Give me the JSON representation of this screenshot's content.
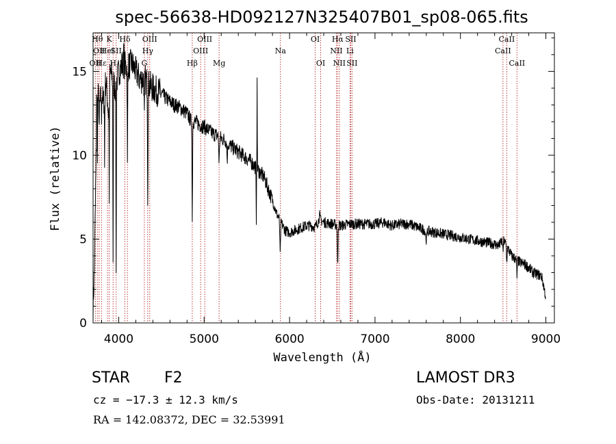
{
  "chart_data": {
    "type": "line",
    "title": "spec-56638-HD092127N325407B01_sp08-065.fits",
    "xlabel": "Wavelength (Å)",
    "ylabel": "Flux (relative)",
    "xlim": [
      3700,
      9100
    ],
    "ylim": [
      0,
      17.3
    ],
    "x_ticks": [
      4000,
      5000,
      6000,
      7000,
      8000,
      9000
    ],
    "y_ticks": [
      0,
      5,
      10,
      15
    ],
    "line_color": "#000000",
    "marker_color": "#b22222",
    "anchors": [
      [
        3700,
        1.0
      ],
      [
        3715,
        3.0
      ],
      [
        3730,
        8.0
      ],
      [
        3745,
        12.5
      ],
      [
        3760,
        13.5
      ],
      [
        3780,
        13.0
      ],
      [
        3800,
        14.0
      ],
      [
        3820,
        13.0
      ],
      [
        3850,
        14.5
      ],
      [
        3880,
        12.5
      ],
      [
        3900,
        15.0
      ],
      [
        3930,
        14.5
      ],
      [
        3960,
        14.0
      ],
      [
        4000,
        15.0
      ],
      [
        4050,
        15.5
      ],
      [
        4100,
        15.2
      ],
      [
        4150,
        15.5
      ],
      [
        4200,
        15.0
      ],
      [
        4250,
        14.5
      ],
      [
        4300,
        14.6
      ],
      [
        4350,
        14.2
      ],
      [
        4400,
        14.0
      ],
      [
        4450,
        13.8
      ],
      [
        4500,
        13.7
      ],
      [
        4550,
        13.4
      ],
      [
        4600,
        13.2
      ],
      [
        4650,
        13.0
      ],
      [
        4700,
        12.9
      ],
      [
        4750,
        12.7
      ],
      [
        4800,
        12.5
      ],
      [
        4850,
        12.0
      ],
      [
        4900,
        12.0
      ],
      [
        4950,
        11.8
      ],
      [
        5000,
        11.7
      ],
      [
        5050,
        11.5
      ],
      [
        5100,
        11.3
      ],
      [
        5150,
        11.2
      ],
      [
        5200,
        11.0
      ],
      [
        5250,
        10.9
      ],
      [
        5300,
        10.6
      ],
      [
        5350,
        10.4
      ],
      [
        5400,
        10.2
      ],
      [
        5450,
        10.0
      ],
      [
        5500,
        9.8
      ],
      [
        5550,
        9.6
      ],
      [
        5600,
        9.3
      ],
      [
        5650,
        9.0
      ],
      [
        5700,
        8.7
      ],
      [
        5750,
        8.0
      ],
      [
        5800,
        7.3
      ],
      [
        5850,
        6.5
      ],
      [
        5900,
        6.0
      ],
      [
        5950,
        5.5
      ],
      [
        6000,
        5.4
      ],
      [
        6050,
        5.5
      ],
      [
        6100,
        5.6
      ],
      [
        6150,
        5.7
      ],
      [
        6200,
        5.8
      ],
      [
        6250,
        5.8
      ],
      [
        6300,
        5.7
      ],
      [
        6350,
        6.2
      ],
      [
        6400,
        6.0
      ],
      [
        6500,
        5.9
      ],
      [
        6600,
        5.8
      ],
      [
        6700,
        5.9
      ],
      [
        6800,
        5.9
      ],
      [
        6900,
        5.9
      ],
      [
        7000,
        5.9
      ],
      [
        7100,
        6.0
      ],
      [
        7200,
        5.8
      ],
      [
        7300,
        5.9
      ],
      [
        7400,
        5.9
      ],
      [
        7500,
        5.7
      ],
      [
        7600,
        5.5
      ],
      [
        7700,
        5.4
      ],
      [
        7800,
        5.3
      ],
      [
        7900,
        5.2
      ],
      [
        8000,
        5.1
      ],
      [
        8100,
        5.0
      ],
      [
        8200,
        4.9
      ],
      [
        8300,
        4.8
      ],
      [
        8400,
        4.7
      ],
      [
        8450,
        4.6
      ],
      [
        8500,
        5.0
      ],
      [
        8550,
        4.5
      ],
      [
        8600,
        4.0
      ],
      [
        8650,
        3.8
      ],
      [
        8700,
        3.6
      ],
      [
        8750,
        3.5
      ],
      [
        8800,
        3.3
      ],
      [
        8850,
        3.0
      ],
      [
        8900,
        2.9
      ],
      [
        8950,
        2.8
      ],
      [
        8975,
        2.2
      ],
      [
        9000,
        1.5
      ]
    ],
    "dips": [
      [
        3734,
        1.5,
        0.7
      ],
      [
        3750,
        4.0,
        1.5
      ],
      [
        3771,
        2.5,
        2.5
      ],
      [
        3798,
        2.0,
        3.0
      ],
      [
        3835,
        4.5,
        3.0
      ],
      [
        3889,
        6.0,
        3.0
      ],
      [
        3934,
        10.5,
        3.5
      ],
      [
        3970,
        11.5,
        3.5
      ],
      [
        4102,
        6.0,
        3.5
      ],
      [
        4300,
        2.5,
        4.0
      ],
      [
        4340,
        7.0,
        4.0
      ],
      [
        4861,
        6.0,
        4.0
      ],
      [
        5175,
        1.5,
        6.0
      ],
      [
        5270,
        1.0,
        6.0
      ],
      [
        5610,
        3.5,
        2.5
      ],
      [
        5890,
        2.0,
        6.0
      ],
      [
        6563,
        2.5,
        5.0
      ],
      [
        7600,
        0.5,
        10.0
      ],
      [
        8498,
        0.8,
        5.0
      ],
      [
        8542,
        1.0,
        5.0
      ],
      [
        8662,
        1.0,
        5.0
      ]
    ],
    "spikes": [
      [
        5620,
        5.0,
        3.0
      ],
      [
        3743,
        3.5,
        1.5
      ],
      [
        4060,
        1.0,
        3.0
      ],
      [
        6350,
        0.6,
        3.0
      ]
    ],
    "spectral_lines": [
      {
        "wl": 3727,
        "label": "OII",
        "row": 3
      },
      {
        "wl": 3750,
        "label": "Hθ",
        "row": 1
      },
      {
        "wl": 3771,
        "label": "OII",
        "row": 2
      },
      {
        "wl": 3798,
        "label": "Hε",
        "row": 3
      },
      {
        "wl": 3869,
        "label": "HeI",
        "row": 2
      },
      {
        "wl": 3889,
        "label": "K",
        "row": 1
      },
      {
        "wl": 3934,
        "label": "H",
        "row": 3
      },
      {
        "wl": 3970,
        "label": "SII",
        "row": 2
      },
      {
        "wl": 4072,
        "label": "Hδ",
        "row": 1
      },
      {
        "wl": 4102,
        "label": "",
        "row": 0
      },
      {
        "wl": 4300,
        "label": "G",
        "row": 3
      },
      {
        "wl": 4340,
        "label": "Hγ",
        "row": 2
      },
      {
        "wl": 4363,
        "label": "OIII",
        "row": 1
      },
      {
        "wl": 4861,
        "label": "Hβ",
        "row": 3
      },
      {
        "wl": 4959,
        "label": "OIII",
        "row": 2
      },
      {
        "wl": 5007,
        "label": "OIII",
        "row": 1
      },
      {
        "wl": 5175,
        "label": "Mg",
        "row": 3
      },
      {
        "wl": 5893,
        "label": "Na",
        "row": 2
      },
      {
        "wl": 6300,
        "label": "OI",
        "row": 1
      },
      {
        "wl": 6364,
        "label": "OI",
        "row": 3
      },
      {
        "wl": 6548,
        "label": "NII",
        "row": 2
      },
      {
        "wl": 6563,
        "label": "Hα",
        "row": 1
      },
      {
        "wl": 6583,
        "label": "NII",
        "row": 3
      },
      {
        "wl": 6707,
        "label": "Li",
        "row": 2
      },
      {
        "wl": 6716,
        "label": "SII",
        "row": 1
      },
      {
        "wl": 6731,
        "label": "SII",
        "row": 3
      },
      {
        "wl": 8498,
        "label": "CaII",
        "row": 2
      },
      {
        "wl": 8542,
        "label": "CaII",
        "row": 1
      },
      {
        "wl": 8662,
        "label": "CaII",
        "row": 3
      }
    ]
  },
  "info": {
    "object_class": "STAR",
    "subclass": "F2",
    "survey": "LAMOST DR3",
    "redshift": "cz = −17.3 ± 12.3 km/s",
    "obs_date": "Obs-Date: 20131211",
    "coords": "RA = 142.08372, DEC =  32.53991"
  }
}
